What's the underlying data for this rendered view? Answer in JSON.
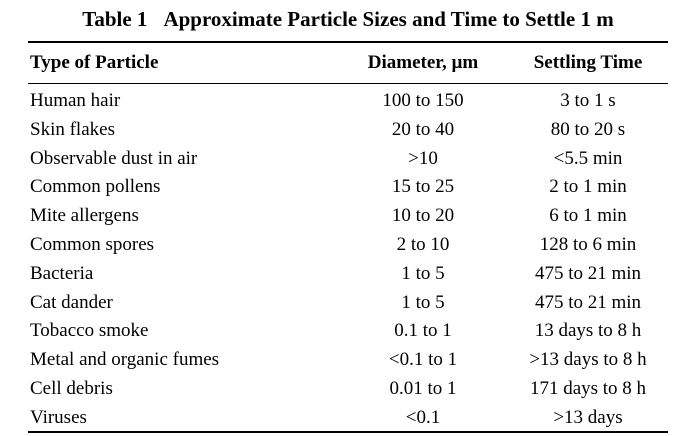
{
  "caption": {
    "number": "Table 1",
    "title": "Approximate Particle Sizes and Time to Settle 1 m"
  },
  "columns": [
    "Type of Particle",
    "Diameter, µm",
    "Settling Time"
  ],
  "rows": [
    [
      "Human hair",
      "100 to 150",
      "3 to 1 s"
    ],
    [
      "Skin flakes",
      "20 to 40",
      "80 to 20 s"
    ],
    [
      "Observable dust in air",
      ">10",
      "<5.5 min"
    ],
    [
      "Common pollens",
      "15 to 25",
      "2 to 1 min"
    ],
    [
      "Mite allergens",
      "10 to 20",
      "6 to 1 min"
    ],
    [
      "Common spores",
      "2 to 10",
      "128 to 6 min"
    ],
    [
      "Bacteria",
      "1 to 5",
      "475 to 21 min"
    ],
    [
      "Cat dander",
      "1 to 5",
      "475 to 21 min"
    ],
    [
      "Tobacco smoke",
      "0.1 to 1",
      "13 days to 8 h"
    ],
    [
      "Metal and organic fumes",
      "<0.1 to 1",
      ">13 days to 8 h"
    ],
    [
      "Cell debris",
      "0.01 to 1",
      "171 days to 8 h"
    ],
    [
      "Viruses",
      "<0.1",
      ">13 days"
    ]
  ]
}
